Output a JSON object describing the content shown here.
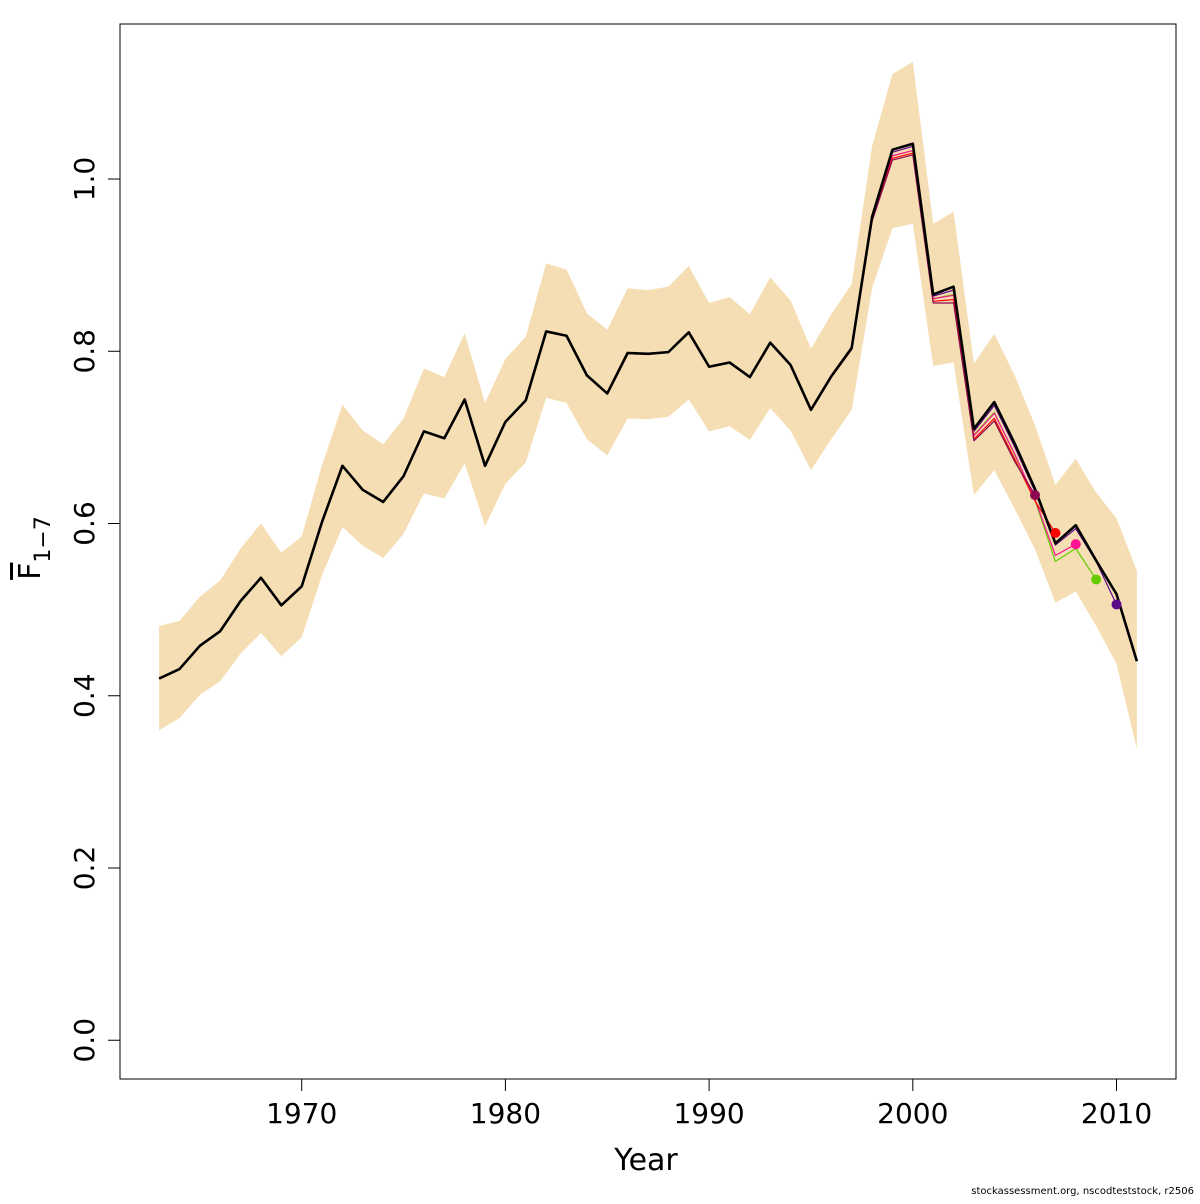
{
  "chart_data": {
    "type": "line",
    "xlabel": "Year",
    "ylabel": "F",
    "ylabel_subscript": "1−7",
    "footer": "stockassessment.org, nscodteststock, r2506",
    "xlim": [
      1961.08,
      2012.92
    ],
    "ylim": [
      -0.045,
      1.18
    ],
    "xticks": [
      1970,
      1980,
      1990,
      2000,
      2010
    ],
    "yticks": [
      {
        "value": 0,
        "label": "0.0"
      },
      0.2,
      0.4,
      0.6,
      0.8,
      {
        "value": 1,
        "label": "1.0"
      }
    ],
    "band_color": "#f5deb3",
    "x": [
      1963,
      1964,
      1965,
      1966,
      1967,
      1968,
      1969,
      1970,
      1971,
      1972,
      1973,
      1974,
      1975,
      1976,
      1977,
      1978,
      1979,
      1980,
      1981,
      1982,
      1983,
      1984,
      1985,
      1986,
      1987,
      1988,
      1989,
      1990,
      1991,
      1992,
      1993,
      1994,
      1995,
      1996,
      1997,
      1998,
      1999,
      2000,
      2001,
      2002,
      2003,
      2004,
      2005,
      2006,
      2007,
      2008,
      2009,
      2010,
      2011
    ],
    "band_upper": [
      0.481,
      0.487,
      0.515,
      0.534,
      0.571,
      0.6,
      0.566,
      0.585,
      0.668,
      0.738,
      0.708,
      0.692,
      0.722,
      0.78,
      0.77,
      0.821,
      0.74,
      0.791,
      0.817,
      0.902,
      0.895,
      0.844,
      0.825,
      0.873,
      0.871,
      0.875,
      0.899,
      0.856,
      0.863,
      0.843,
      0.886,
      0.859,
      0.803,
      0.843,
      0.878,
      1.038,
      1.122,
      1.136,
      0.948,
      0.962,
      0.786,
      0.82,
      0.772,
      0.714,
      0.645,
      0.675,
      0.636,
      0.606,
      0.545
    ],
    "band_lower": [
      0.36,
      0.374,
      0.401,
      0.417,
      0.449,
      0.473,
      0.446,
      0.468,
      0.54,
      0.596,
      0.574,
      0.56,
      0.588,
      0.635,
      0.629,
      0.67,
      0.597,
      0.646,
      0.671,
      0.746,
      0.74,
      0.698,
      0.679,
      0.722,
      0.721,
      0.724,
      0.744,
      0.707,
      0.713,
      0.697,
      0.734,
      0.708,
      0.662,
      0.698,
      0.732,
      0.873,
      0.943,
      0.948,
      0.783,
      0.787,
      0.633,
      0.662,
      0.617,
      0.57,
      0.508,
      0.521,
      0.481,
      0.437,
      0.338
    ],
    "values": [
      0.42,
      0.431,
      0.458,
      0.475,
      0.51,
      0.537,
      0.505,
      0.527,
      0.602,
      0.667,
      0.639,
      0.625,
      0.655,
      0.707,
      0.699,
      0.744,
      0.667,
      0.718,
      0.743,
      0.823,
      0.818,
      0.772,
      0.751,
      0.798,
      0.797,
      0.799,
      0.822,
      0.782,
      0.787,
      0.77,
      0.81,
      0.784,
      0.732,
      0.771,
      0.804,
      0.956,
      1.034,
      1.041,
      0.866,
      0.875,
      0.71,
      0.741,
      0.693,
      0.64,
      0.577,
      0.598,
      0.557,
      0.518,
      0.44
    ],
    "color": "#000000",
    "series": [
      {
        "color": "#5c0a8a",
        "x": [
          1995,
          1996,
          1997,
          1998,
          1999,
          2000,
          2001,
          2002,
          2003,
          2004,
          2005,
          2006,
          2007,
          2008,
          2009,
          2010
        ],
        "values": [
          0.732,
          0.771,
          0.804,
          0.955,
          1.031,
          1.038,
          0.864,
          0.871,
          0.707,
          0.737,
          0.689,
          0.637,
          0.575,
          0.594,
          0.556,
          0.506
        ]
      },
      {
        "color": "#66cc00",
        "x": [
          1995,
          1996,
          1997,
          1998,
          1999,
          2000,
          2001,
          2002,
          2003,
          2004,
          2005,
          2006,
          2007,
          2008,
          2009
        ],
        "values": [
          0.732,
          0.771,
          0.803,
          0.953,
          1.027,
          1.033,
          0.861,
          0.866,
          0.703,
          0.729,
          0.68,
          0.627,
          0.556,
          0.571,
          0.535
        ]
      },
      {
        "color": "#ff1493",
        "x": [
          1995,
          1996,
          1997,
          1998,
          1999,
          2000,
          2001,
          2002,
          2003,
          2004,
          2005,
          2006,
          2007,
          2008
        ],
        "values": [
          0.732,
          0.771,
          0.803,
          0.953,
          1.027,
          1.033,
          0.861,
          0.865,
          0.702,
          0.728,
          0.681,
          0.628,
          0.563,
          0.576
        ]
      },
      {
        "color": "#ff0000",
        "x": [
          1995,
          1996,
          1997,
          1998,
          1999,
          2000,
          2001,
          2002,
          2003,
          2004,
          2005,
          2006,
          2007
        ],
        "values": [
          0.731,
          0.77,
          0.802,
          0.952,
          1.024,
          1.03,
          0.858,
          0.86,
          0.698,
          0.722,
          0.675,
          0.626,
          0.589
        ]
      },
      {
        "color": "#8b0a50",
        "x": [
          1995,
          1996,
          1997,
          1998,
          1999,
          2000,
          2001,
          2002,
          2003,
          2004,
          2005,
          2006
        ],
        "values": [
          0.731,
          0.77,
          0.802,
          0.951,
          1.022,
          1.028,
          0.856,
          0.856,
          0.696,
          0.719,
          0.672,
          0.633
        ]
      }
    ]
  }
}
